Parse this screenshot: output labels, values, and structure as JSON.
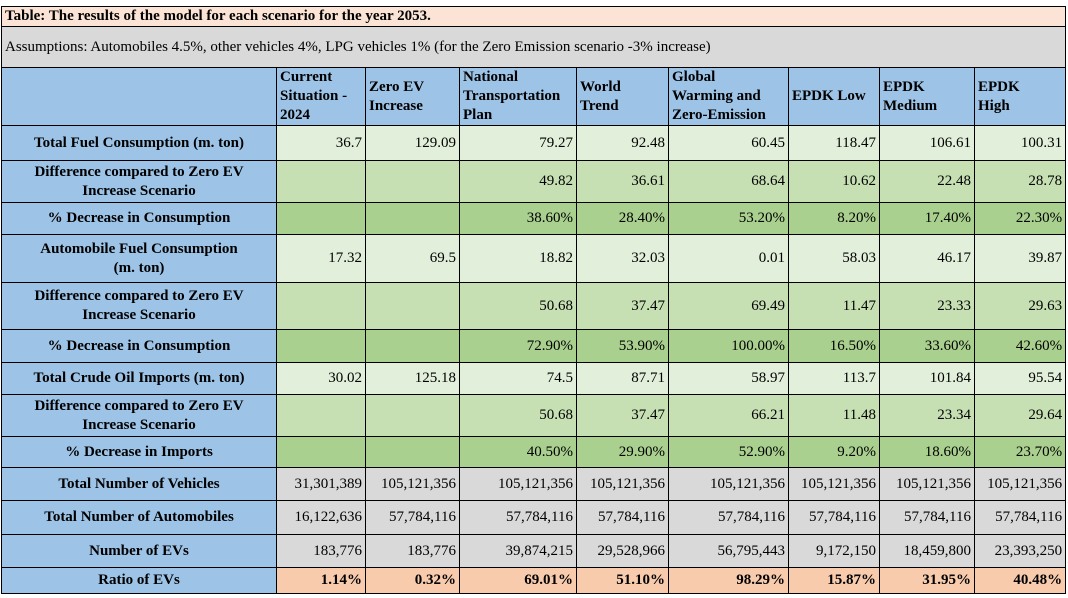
{
  "title": "Table: The results of the model for each scenario for the year 2053.",
  "assumptions": "Assumptions: Automobiles 4.5%, other vehicles 4%, LPG vehicles 1% (for the Zero Emission scenario -3% increase)",
  "columns": [
    {
      "lines": [
        "Current",
        "Situation -",
        "2024"
      ]
    },
    {
      "lines": [
        "Zero EV",
        "Increase"
      ]
    },
    {
      "lines": [
        "National",
        "Transportation",
        "Plan"
      ]
    },
    {
      "lines": [
        "World",
        "Trend"
      ]
    },
    {
      "lines": [
        "Global",
        "Warming and",
        "Zero-Emission"
      ]
    },
    {
      "lines": [
        "EPDK Low"
      ]
    },
    {
      "lines": [
        "EPDK",
        "Medium"
      ]
    },
    {
      "lines": [
        "EPDK",
        "High"
      ]
    }
  ],
  "rows": [
    {
      "lines": [
        "Total Fuel Consumption (m. ton)"
      ],
      "tone": "g1",
      "values": [
        "36.7",
        "129.09",
        "79.27",
        "92.48",
        "60.45",
        "118.47",
        "106.61",
        "100.31"
      ]
    },
    {
      "lines": [
        "Difference compared to Zero EV",
        "Increase Scenario"
      ],
      "tone": "g2",
      "values": [
        "",
        "",
        "49.82",
        "36.61",
        "68.64",
        "10.62",
        "22.48",
        "28.78"
      ]
    },
    {
      "lines": [
        "% Decrease in Consumption"
      ],
      "tone": "g3",
      "values": [
        "",
        "",
        "38.60%",
        "28.40%",
        "53.20%",
        "8.20%",
        "17.40%",
        "22.30%"
      ]
    },
    {
      "lines": [
        "Automobile Fuel Consumption",
        "(m. ton)"
      ],
      "tone": "g1",
      "values": [
        "17.32",
        "69.5",
        "18.82",
        "32.03",
        "0.01",
        "58.03",
        "46.17",
        "39.87"
      ]
    },
    {
      "lines": [
        "Difference compared to Zero EV",
        "Increase Scenario"
      ],
      "tone": "g2",
      "values": [
        "",
        "",
        "50.68",
        "37.47",
        "69.49",
        "11.47",
        "23.33",
        "29.63"
      ]
    },
    {
      "lines": [
        "% Decrease in Consumption"
      ],
      "tone": "g3",
      "values": [
        "",
        "",
        "72.90%",
        "53.90%",
        "100.00%",
        "16.50%",
        "33.60%",
        "42.60%"
      ]
    },
    {
      "lines": [
        "Total Crude Oil Imports (m. ton)"
      ],
      "tone": "g1",
      "values": [
        "30.02",
        "125.18",
        "74.5",
        "87.71",
        "58.97",
        "113.7",
        "101.84",
        "95.54"
      ]
    },
    {
      "lines": [
        "Difference compared to Zero EV",
        "Increase Scenario"
      ],
      "tone": "g2",
      "values": [
        "",
        "",
        "50.68",
        "37.47",
        "66.21",
        "11.48",
        "23.34",
        "29.64"
      ]
    },
    {
      "lines": [
        "% Decrease in Imports"
      ],
      "tone": "g3",
      "values": [
        "",
        "",
        "40.50%",
        "29.90%",
        "52.90%",
        "9.20%",
        "18.60%",
        "23.70%"
      ]
    },
    {
      "lines": [
        "Total Number of Vehicles"
      ],
      "tone": "gr",
      "values": [
        "31,301,389",
        "105,121,356",
        "105,121,356",
        "105,121,356",
        "105,121,356",
        "105,121,356",
        "105,121,356",
        "105,121,356"
      ]
    },
    {
      "lines": [
        "Total Number of Automobiles"
      ],
      "tone": "gr",
      "values": [
        "16,122,636",
        "57,784,116",
        "57,784,116",
        "57,784,116",
        "57,784,116",
        "57,784,116",
        "57,784,116",
        "57,784,116"
      ]
    },
    {
      "lines": [
        "Number of EVs"
      ],
      "tone": "gr",
      "values": [
        "183,776",
        "183,776",
        "39,874,215",
        "29,528,966",
        "56,795,443",
        "9,172,150",
        "18,459,800",
        "23,393,250"
      ]
    },
    {
      "lines": [
        "Ratio of EVs"
      ],
      "tone": "or",
      "values": [
        "1.14%",
        "0.32%",
        "69.01%",
        "51.10%",
        "98.29%",
        "15.87%",
        "31.95%",
        "40.48%"
      ]
    }
  ],
  "colors": {
    "title_bg": "#fbe3d6",
    "assumption_bg": "#d9d9d9",
    "header_bg": "#9dc3e6",
    "light_green": "#e2efda",
    "mid_green": "#c6e0b4",
    "dark_green": "#a9d08e",
    "gray": "#d9d9d9",
    "orange": "#f8cbad"
  }
}
